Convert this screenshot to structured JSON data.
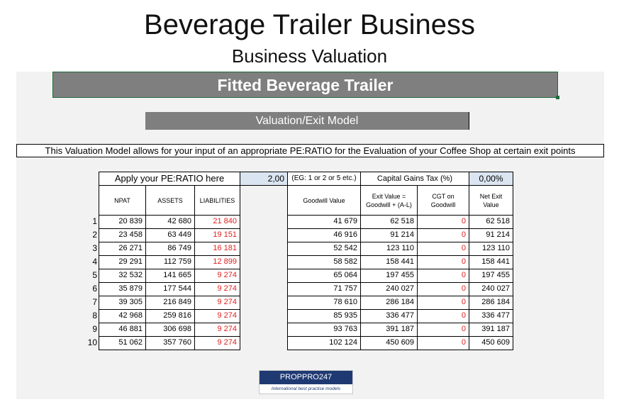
{
  "header": {
    "title": "Beverage Trailer Business",
    "subtitle": "Business Valuation"
  },
  "banner": "Fitted Beverage Trailer",
  "model_title": "Valuation/Exit Model",
  "description": "This Valuation Model allows for your input of an appropriate PE:RATIO for the Evaluation of your Coffee Shop at certain exit points",
  "inputs": {
    "pe_label": "Apply your PE:RATIO here",
    "pe_value": "2,00",
    "pe_hint": "(EG: 1 or 2 or 5 etc.)",
    "cgt_label": "Capital Gains Tax (%)",
    "cgt_value": "0,00%"
  },
  "columns": {
    "npat": "NPAT",
    "assets": "ASSETS",
    "liabilities": "LIABILITIES",
    "goodwill": "Goodwill Value",
    "exit_value": "Exit Value = Goodwill + (A-L)",
    "cgt": "CGT on Goodwill",
    "net_exit": "Net Exit Value"
  },
  "rows": [
    {
      "n": "1",
      "npat": "20 839",
      "assets": "42 680",
      "liabilities": "21 840",
      "goodwill": "41 679",
      "exit": "62 518",
      "cgt": "0",
      "net": "62 518"
    },
    {
      "n": "2",
      "npat": "23 458",
      "assets": "63 449",
      "liabilities": "19 151",
      "goodwill": "46 916",
      "exit": "91 214",
      "cgt": "0",
      "net": "91 214"
    },
    {
      "n": "3",
      "npat": "26 271",
      "assets": "86 749",
      "liabilities": "16 181",
      "goodwill": "52 542",
      "exit": "123 110",
      "cgt": "0",
      "net": "123 110"
    },
    {
      "n": "4",
      "npat": "29 291",
      "assets": "112 759",
      "liabilities": "12 899",
      "goodwill": "58 582",
      "exit": "158 441",
      "cgt": "0",
      "net": "158 441"
    },
    {
      "n": "5",
      "npat": "32 532",
      "assets": "141 665",
      "liabilities": "9 274",
      "goodwill": "65 064",
      "exit": "197 455",
      "cgt": "0",
      "net": "197 455"
    },
    {
      "n": "6",
      "npat": "35 879",
      "assets": "177 544",
      "liabilities": "9 274",
      "goodwill": "71 757",
      "exit": "240 027",
      "cgt": "0",
      "net": "240 027"
    },
    {
      "n": "7",
      "npat": "39 305",
      "assets": "216 849",
      "liabilities": "9 274",
      "goodwill": "78 610",
      "exit": "286 184",
      "cgt": "0",
      "net": "286 184"
    },
    {
      "n": "8",
      "npat": "42 968",
      "assets": "259 816",
      "liabilities": "9 274",
      "goodwill": "85 935",
      "exit": "336 477",
      "cgt": "0",
      "net": "336 477"
    },
    {
      "n": "9",
      "npat": "46 881",
      "assets": "306 698",
      "liabilities": "9 274",
      "goodwill": "93 763",
      "exit": "391 187",
      "cgt": "0",
      "net": "391 187"
    },
    {
      "n": "10",
      "npat": "51 062",
      "assets": "357 760",
      "liabilities": "9 274",
      "goodwill": "102 124",
      "exit": "450 609",
      "cgt": "0",
      "net": "450 609"
    }
  ],
  "logo": {
    "name": "PROPPRO247",
    "tagline": "International best practise models"
  },
  "colors": {
    "banner_bg": "#7f7f7f",
    "sheet_bg": "#f2f2f2",
    "input_bg": "#dbe5f1",
    "negative_red": "#e02020",
    "logo_blue": "#1f3a73"
  }
}
